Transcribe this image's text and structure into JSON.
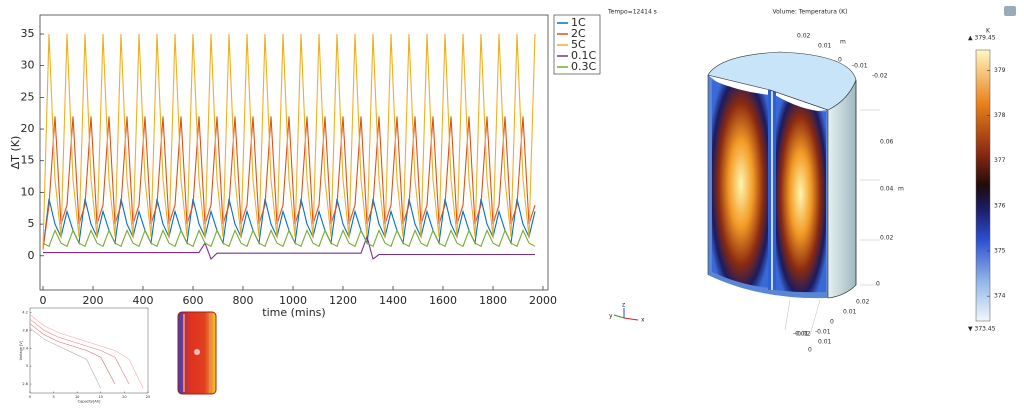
{
  "chart_data": [
    {
      "type": "line",
      "xlabel": "time (mins)",
      "ylabel": "ΔT (K)",
      "legend": "outside-right",
      "xlim": [
        -12,
        2020
      ],
      "ylim": [
        -5.4,
        38
      ],
      "xticks": [
        0,
        200,
        400,
        600,
        800,
        1000,
        1200,
        1400,
        1600,
        1800,
        2000
      ],
      "yticks": [
        0,
        5,
        10,
        15,
        20,
        25,
        30,
        35
      ],
      "x": [
        0,
        24,
        48,
        72,
        96,
        120,
        144,
        168,
        192,
        216,
        240,
        264,
        288,
        312,
        336,
        360,
        384,
        408,
        432,
        456,
        480,
        504,
        528,
        552,
        576,
        600,
        624,
        648,
        672,
        696,
        720,
        744,
        768,
        792,
        816,
        840,
        864,
        888,
        912,
        936,
        960,
        984,
        1008,
        1032,
        1056,
        1080,
        1104,
        1128,
        1152,
        1176,
        1200,
        1224,
        1248,
        1272,
        1296,
        1320,
        1344,
        1368,
        1392,
        1416,
        1440,
        1464,
        1488,
        1512,
        1536,
        1560,
        1584,
        1608,
        1632,
        1656,
        1680,
        1704,
        1728,
        1752,
        1776,
        1800,
        1824,
        1848,
        1872,
        1896,
        1920,
        1944,
        1968
      ],
      "series": [
        {
          "name": "1C",
          "color": "#0072bd",
          "values": [
            1,
            9,
            5,
            3,
            7,
            4,
            2,
            9,
            5,
            3,
            7,
            4,
            2,
            9,
            5,
            3,
            7,
            4,
            2,
            9,
            5,
            3,
            7,
            4,
            2,
            9,
            5,
            3,
            7,
            4,
            2,
            9,
            5,
            3,
            7,
            4,
            2,
            9,
            5,
            3,
            7,
            4,
            2,
            9,
            5,
            3,
            7,
            4,
            2,
            9,
            5,
            3,
            7,
            4,
            2,
            9,
            5,
            3,
            7,
            4,
            2,
            9,
            5,
            3,
            7,
            4,
            2,
            9,
            5,
            3,
            7,
            4,
            2,
            9,
            5,
            3,
            7,
            4,
            2,
            9,
            5,
            3,
            7
          ]
        },
        {
          "name": "2C",
          "color": "#d95319",
          "values": [
            1,
            8,
            22,
            5,
            8,
            22,
            5,
            8,
            22,
            5,
            8,
            22,
            5,
            8,
            22,
            5,
            8,
            22,
            5,
            8,
            22,
            5,
            8,
            22,
            5,
            8,
            22,
            5,
            8,
            22,
            5,
            8,
            22,
            5,
            8,
            22,
            5,
            8,
            22,
            5,
            8,
            22,
            5,
            8,
            22,
            5,
            8,
            22,
            5,
            8,
            22,
            5,
            8,
            22,
            5,
            8,
            22,
            5,
            8,
            22,
            5,
            8,
            22,
            5,
            8,
            22,
            5,
            8,
            22,
            5,
            8,
            22,
            5,
            8,
            22,
            5,
            8,
            22,
            5,
            8,
            22,
            5,
            8
          ]
        },
        {
          "name": "5C",
          "color": "#edb120",
          "values": [
            1,
            35,
            12,
            3,
            35,
            12,
            3,
            35,
            12,
            3,
            35,
            12,
            3,
            35,
            12,
            3,
            35,
            12,
            3,
            35,
            12,
            3,
            35,
            12,
            3,
            35,
            12,
            3,
            35,
            12,
            3,
            35,
            12,
            3,
            35,
            12,
            3,
            35,
            12,
            3,
            35,
            12,
            3,
            35,
            12,
            3,
            35,
            12,
            3,
            35,
            12,
            3,
            35,
            12,
            3,
            35,
            12,
            3,
            35,
            12,
            3,
            35,
            12,
            3,
            35,
            12,
            3,
            35,
            12,
            3,
            35,
            12,
            3,
            35,
            12,
            3,
            35,
            12,
            3,
            35,
            12,
            3,
            35
          ]
        },
        {
          "name": "0.1C",
          "color": "#7e2f8e",
          "values": [
            0.5,
            0.5,
            0.5,
            0.5,
            0.5,
            0.5,
            0.5,
            0.5,
            0.5,
            0.5,
            0.5,
            0.5,
            0.5,
            0.5,
            0.5,
            0.5,
            0.5,
            0.5,
            0.5,
            0.5,
            0.5,
            0.5,
            0.5,
            0.5,
            0.5,
            0.5,
            0.5,
            2,
            -0.5,
            0.4,
            0.4,
            0.4,
            0.4,
            0.4,
            0.4,
            0.4,
            0.4,
            0.4,
            0.4,
            0.4,
            0.4,
            0.4,
            0.4,
            0.4,
            0.4,
            0.4,
            0.4,
            0.4,
            0.4,
            0.4,
            0.4,
            0.4,
            0.4,
            0.4,
            3,
            -0.5,
            0.2,
            0.2,
            0.2,
            0.2,
            0.2,
            0.2,
            0.2,
            0.2,
            0.2,
            0.2,
            0.2,
            0.2,
            0.2,
            0.2,
            0.2,
            0.2,
            0.2,
            0.2,
            0.2,
            0.2,
            0.2,
            0.2,
            0.2,
            0.2,
            0.2,
            0.2,
            0.2
          ]
        },
        {
          "name": "0.3C",
          "color": "#77ac30",
          "values": [
            2,
            1.5,
            4,
            2,
            1.5,
            4,
            2,
            1.5,
            4,
            2,
            1.5,
            4,
            2,
            1.5,
            4,
            2,
            1.5,
            4,
            2,
            1.5,
            4,
            2,
            1.5,
            4,
            2,
            1.5,
            4,
            2,
            1.5,
            4,
            2,
            1.5,
            4,
            2,
            1.5,
            4,
            2,
            1.5,
            4,
            2,
            1.5,
            4,
            2,
            1.5,
            4,
            2,
            1.5,
            4,
            2,
            1.5,
            4,
            2,
            1.5,
            4,
            2,
            1.5,
            4,
            2,
            1.5,
            4,
            2,
            1.5,
            4,
            2,
            1.5,
            4,
            2,
            1.5,
            4,
            2,
            1.5,
            4,
            2,
            1.5,
            4,
            2,
            1.5,
            4,
            2,
            1.5,
            4,
            2,
            1.5
          ]
        }
      ]
    },
    {
      "type": "line",
      "xlabel": "Capacity[Ah]",
      "ylabel": "Voltage [V]",
      "xlim": [
        0,
        25
      ],
      "ylim": [
        2.4,
        4.3
      ],
      "xticks": [
        0,
        5,
        10,
        15,
        20,
        25
      ],
      "yticks": [
        2.6,
        3,
        3.4,
        3.8,
        4.2
      ],
      "x": [
        0,
        3,
        6,
        9,
        12,
        15,
        18,
        21,
        24
      ],
      "series": [
        {
          "color": "#f4a6a6",
          "values": [
            4.15,
            3.9,
            3.75,
            3.65,
            3.55,
            3.45,
            3.35,
            3.15,
            2.5
          ]
        },
        {
          "color": "#e88080",
          "values": [
            4.05,
            3.8,
            3.65,
            3.55,
            3.45,
            3.35,
            3.2,
            2.6,
            null
          ]
        },
        {
          "color": "#d86a6a",
          "values": [
            3.95,
            3.7,
            3.55,
            3.45,
            3.35,
            3.2,
            2.6,
            null,
            null
          ]
        },
        {
          "color": "#b0b0b0",
          "values": [
            3.85,
            3.6,
            3.45,
            3.3,
            3.15,
            2.5,
            null,
            null,
            null
          ]
        }
      ]
    },
    {
      "type": "colorbar",
      "unit": "K",
      "lim": [
        373.45,
        379.45
      ],
      "ticks": [
        374,
        375,
        376,
        377,
        378,
        379
      ],
      "max_label": {
        "value": 379.45,
        "label": "▲ 379.45"
      },
      "min_label": {
        "value": 373.45,
        "label": "▼ 373.45"
      }
    }
  ],
  "view": {
    "time": "Tempo=12414 s",
    "title": "Volume: Temperatura (K)",
    "axis_labels": [
      "0.02",
      "0.01",
      "m",
      "0",
      "-0.01",
      "-0.02",
      "0.06",
      "0.04",
      "m",
      "0.02",
      "0",
      "0.02",
      "0.01",
      "0",
      "-0.01",
      "-0.02",
      "0.01",
      "0",
      "-0.01"
    ],
    "triad": [
      "z",
      "y",
      "x"
    ]
  }
}
